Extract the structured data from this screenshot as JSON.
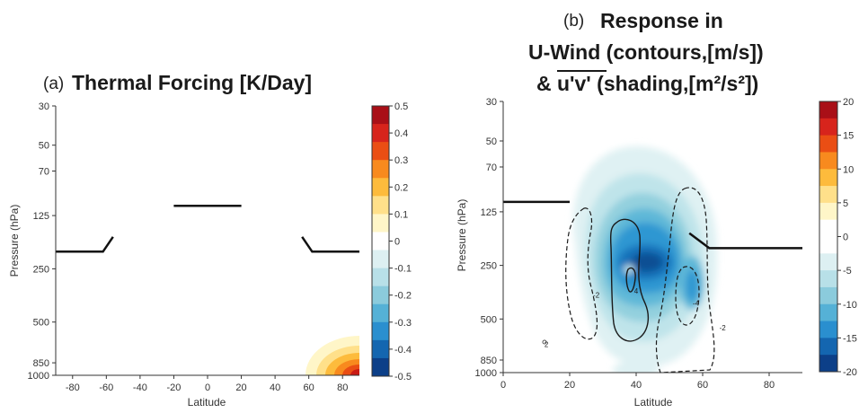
{
  "chart_data": [
    {
      "panel": "(a)",
      "type": "heatmap",
      "title": "Thermal Forcing [K/Day]",
      "xlabel": "Latitude",
      "ylabel": "Pressure (hPa)",
      "xlim": [
        -90,
        90
      ],
      "xticks": [
        "-80",
        "-60",
        "-40",
        "-20",
        "0",
        "20",
        "40",
        "60",
        "80"
      ],
      "yticks": [
        "30",
        "50",
        "70",
        "125",
        "250",
        "500",
        "850",
        "1000"
      ],
      "yscale": "log",
      "ylim": [
        1000,
        30
      ],
      "colorbar": {
        "ticks": [
          "0.5",
          "0.4",
          "0.3",
          "0.2",
          "0.1",
          "0",
          "-0.1",
          "-0.2",
          "-0.3",
          "-0.4",
          "-0.5"
        ],
        "range": [
          -0.5,
          0.5
        ]
      },
      "jet_lines": [
        {
          "lat": [
            -90,
            -62,
            -56
          ],
          "p": [
            200,
            200,
            165
          ]
        },
        {
          "lat": [
            -20,
            20
          ],
          "p": [
            110,
            110
          ]
        },
        {
          "lat": [
            56,
            62,
            90
          ],
          "p": [
            165,
            200,
            200
          ]
        }
      ],
      "forcing_region": {
        "lat_range": [
          58,
          90
        ],
        "p_range": [
          1000,
          600
        ],
        "max_value": 0.5
      }
    },
    {
      "panel": "(b)",
      "type": "heatmap",
      "title": [
        "Response in",
        "U-Wind (contours,[m/s])",
        "& u'v' (shading,[m²/s²])"
      ],
      "xlabel": "Latitude",
      "ylabel": "Pressure (hPa)",
      "xlim": [
        0,
        90
      ],
      "xticks": [
        "0",
        "20",
        "40",
        "60",
        "80"
      ],
      "yticks": [
        "30",
        "50",
        "70",
        "125",
        "250",
        "500",
        "850",
        "1000"
      ],
      "yscale": "log",
      "ylim": [
        1000,
        30
      ],
      "colorbar": {
        "ticks": [
          "20",
          "15",
          "10",
          "5",
          "0",
          "-5",
          "-10",
          "-15",
          "-20"
        ],
        "range": [
          -20,
          20
        ]
      },
      "jet_lines": [
        {
          "lat": [
            0,
            20
          ],
          "p": [
            110,
            110
          ]
        },
        {
          "lat": [
            56,
            62,
            90
          ],
          "p": [
            165,
            200,
            200
          ]
        }
      ],
      "shading_min": {
        "lat": 42,
        "p": 240,
        "value": -20
      },
      "contour_labels": [
        {
          "text": "-2",
          "lat": 28,
          "p": 380
        },
        {
          "text": "4",
          "lat": 40,
          "p": 360
        },
        {
          "text": "-4",
          "lat": 58,
          "p": 420
        },
        {
          "text": "-2",
          "lat": 66,
          "p": 580
        },
        {
          "text": "2",
          "lat": 13,
          "p": 720
        }
      ]
    }
  ]
}
